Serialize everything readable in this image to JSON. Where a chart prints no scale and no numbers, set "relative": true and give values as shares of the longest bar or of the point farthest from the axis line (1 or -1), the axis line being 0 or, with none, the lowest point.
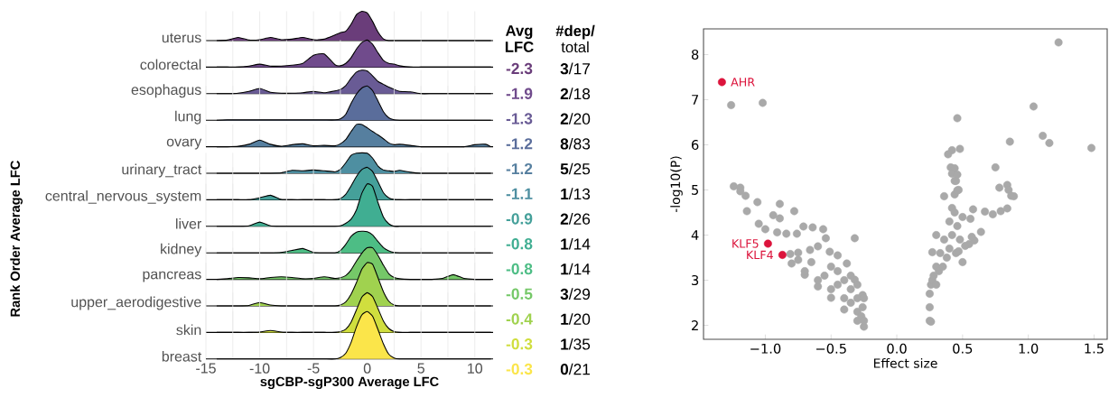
{
  "chart_data": [
    {
      "type": "area",
      "relative": true,
      "grid": "x",
      "tick_labels": false,
      "xlim": [
        -15,
        11.7
      ],
      "xticks": [
        -15,
        {
          "value": -12.5,
          "label": null
        },
        -10,
        {
          "value": -7.5,
          "label": null
        },
        -5,
        {
          "value": -2.5,
          "label": null
        },
        0,
        {
          "value": 2.5,
          "label": null
        },
        5,
        {
          "value": 7.5,
          "label": null
        },
        10
      ],
      "x": [
        -14,
        -13,
        -12,
        -11,
        -10,
        -9,
        -8,
        -7,
        -6,
        -5,
        -4,
        -3,
        -2.5,
        -2,
        -1.5,
        -1,
        -0.5,
        0,
        0.5,
        1,
        1.5,
        2,
        2.5,
        3,
        4,
        5,
        6,
        7,
        8,
        9,
        10,
        11,
        11.5
      ],
      "series": [
        {
          "name": "uterus",
          "color": "#6a3d7a",
          "values": [
            0,
            0.02,
            0.11,
            0.02,
            0.03,
            0.11,
            0.03,
            0.05,
            0.11,
            0.03,
            0.05,
            0.19,
            0.27,
            0.32,
            0.56,
            0.89,
            1,
            0.94,
            0.65,
            0.29,
            0.06,
            0,
            0,
            0,
            0,
            0,
            0,
            0,
            0,
            0,
            0,
            0,
            0
          ]
        }
      ]
    },
    {
      "type": "area",
      "relative": true,
      "grid": "x",
      "tick_labels": false,
      "xlim": [
        -15,
        11.7
      ],
      "xticks": [
        -15,
        {
          "value": -12.5,
          "label": null
        },
        -10,
        {
          "value": -7.5,
          "label": null
        },
        -5,
        {
          "value": -2.5,
          "label": null
        },
        0,
        {
          "value": 2.5,
          "label": null
        },
        5,
        {
          "value": 7.5,
          "label": null
        },
        10
      ],
      "x": [
        -14,
        -13,
        -12,
        -11,
        -10,
        -9,
        -8,
        -7,
        -6,
        -5,
        -4,
        -3,
        -2.5,
        -2,
        -1.5,
        -1,
        -0.5,
        0,
        0.5,
        1,
        1.5,
        2,
        2.5,
        3,
        4,
        5,
        6,
        7,
        8,
        9,
        10,
        11,
        11.5
      ],
      "series": [
        {
          "name": "colorectal",
          "color": "#704b8c",
          "values": [
            0,
            0,
            0,
            0.04,
            0.11,
            0.04,
            0.04,
            0.07,
            0.14,
            0.44,
            0.49,
            0.09,
            0.05,
            0.14,
            0.35,
            0.67,
            0.91,
            1,
            0.84,
            0.53,
            0.25,
            0.14,
            0.11,
            0.05,
            0,
            0,
            0,
            0,
            0,
            0,
            0,
            0,
            0
          ]
        }
      ]
    },
    {
      "type": "area",
      "relative": true,
      "grid": "x",
      "tick_labels": false,
      "xlim": [
        -15,
        11.7
      ],
      "xticks": [
        -15,
        {
          "value": -12.5,
          "label": null
        },
        -10,
        {
          "value": -7.5,
          "label": null
        },
        -5,
        {
          "value": -2.5,
          "label": null
        },
        0,
        {
          "value": 2.5,
          "label": null
        },
        5,
        {
          "value": 7.5,
          "label": null
        },
        10
      ],
      "x": [
        -14,
        -13,
        -12,
        -11,
        -10,
        -9,
        -8,
        -7,
        -6,
        -5,
        -4,
        -3,
        -2.5,
        -2,
        -1.5,
        -1,
        -0.5,
        0,
        0.5,
        1,
        1.5,
        2,
        2.5,
        3,
        4,
        5,
        6,
        7,
        8,
        9,
        10,
        11,
        11.5
      ],
      "series": [
        {
          "name": "esophagus",
          "color": "#695b95",
          "values": [
            0,
            0,
            0.02,
            0.1,
            0.22,
            0.06,
            0.02,
            0.02,
            0.04,
            0.1,
            0.04,
            0.12,
            0.18,
            0.34,
            0.66,
            0.92,
            1,
            0.96,
            0.76,
            0.52,
            0.4,
            0.28,
            0.18,
            0.1,
            0.08,
            0,
            0,
            0,
            0,
            0,
            0,
            0,
            0
          ]
        }
      ]
    },
    {
      "type": "area",
      "relative": true,
      "grid": "x",
      "tick_labels": false,
      "xlim": [
        -15,
        11.7
      ],
      "xticks": [
        -15,
        {
          "value": -12.5,
          "label": null
        },
        -10,
        {
          "value": -7.5,
          "label": null
        },
        -5,
        {
          "value": -2.5,
          "label": null
        },
        0,
        {
          "value": 2.5,
          "label": null
        },
        5,
        {
          "value": 7.5,
          "label": null
        },
        10
      ],
      "x": [
        -14,
        -13,
        -12,
        -11,
        -10,
        -9,
        -8,
        -7,
        -6,
        -5,
        -4,
        -3,
        -2.5,
        -2,
        -1.5,
        -1,
        -0.5,
        0,
        0.5,
        1,
        1.5,
        2,
        2.5,
        3,
        4,
        5,
        6,
        7,
        8,
        9,
        10,
        11,
        11.5
      ],
      "series": [
        {
          "name": "lung",
          "color": "#5a6d9b",
          "values": [
            0,
            0.01,
            0.01,
            0.01,
            0.01,
            0.01,
            0.01,
            0.01,
            0.01,
            0.01,
            0.01,
            0.01,
            0.04,
            0.17,
            0.49,
            0.76,
            0.94,
            1,
            0.86,
            0.56,
            0.25,
            0.07,
            0.01,
            0,
            0,
            0,
            0,
            0,
            0,
            0,
            0,
            0,
            0
          ]
        }
      ]
    },
    {
      "type": "area",
      "relative": true,
      "grid": "x",
      "tick_labels": false,
      "xlim": [
        -15,
        11.7
      ],
      "xticks": [
        -15,
        {
          "value": -12.5,
          "label": null
        },
        -10,
        {
          "value": -7.5,
          "label": null
        },
        -5,
        {
          "value": -2.5,
          "label": null
        },
        0,
        {
          "value": 2.5,
          "label": null
        },
        5,
        {
          "value": 7.5,
          "label": null
        },
        10
      ],
      "x": [
        -14,
        -13,
        -12,
        -11,
        -10,
        -9,
        -8,
        -7,
        -6,
        -5,
        -4,
        -3,
        -2.5,
        -2,
        -1.5,
        -1,
        -0.5,
        0,
        0.5,
        1,
        1.5,
        2,
        2.5,
        3,
        4,
        5,
        6,
        7,
        8,
        9,
        10,
        11,
        11.5
      ],
      "series": [
        {
          "name": "ovary",
          "color": "#567f9f",
          "values": [
            0,
            0,
            0.02,
            0.11,
            0.3,
            0.11,
            0.02,
            0.09,
            0.13,
            0.04,
            0.06,
            0.04,
            0.13,
            0.32,
            0.68,
            1,
            1,
            0.85,
            0.68,
            0.53,
            0.36,
            0.17,
            0.09,
            0.11,
            0.06,
            0,
            0,
            0,
            0,
            0,
            0.09,
            0.11,
            0
          ]
        }
      ]
    },
    {
      "type": "area",
      "relative": true,
      "grid": "x",
      "tick_labels": false,
      "xlim": [
        -15,
        11.7
      ],
      "xticks": [
        -15,
        {
          "value": -12.5,
          "label": null
        },
        -10,
        {
          "value": -7.5,
          "label": null
        },
        -5,
        {
          "value": -2.5,
          "label": null
        },
        0,
        {
          "value": 2.5,
          "label": null
        },
        5,
        {
          "value": 7.5,
          "label": null
        },
        10
      ],
      "x": [
        -14,
        -13,
        -12,
        -11,
        -10,
        -9,
        -8,
        -7,
        -6,
        -5,
        -4,
        -3,
        -2.5,
        -2,
        -1.5,
        -1,
        -0.5,
        0,
        0.5,
        1,
        1.5,
        2,
        2.5,
        3,
        4,
        5,
        6,
        7,
        8,
        9,
        10,
        11,
        11.5
      ],
      "series": [
        {
          "name": "urinary_tract",
          "color": "#4e8fa1",
          "values": [
            0,
            0,
            0,
            0,
            0,
            0,
            0.02,
            0.14,
            0.12,
            0.16,
            0.12,
            0.07,
            0.19,
            0.51,
            0.88,
            0.98,
            1,
            0.98,
            0.74,
            0.35,
            0.16,
            0.12,
            0.09,
            0.14,
            0.05,
            0,
            0,
            0,
            0,
            0,
            0,
            0,
            0
          ]
        }
      ]
    },
    {
      "type": "area",
      "relative": true,
      "grid": "x",
      "tick_labels": false,
      "ylabel": "Rank Order Average LFC",
      "xlim": [
        -15,
        11.7
      ],
      "xticks": [
        -15,
        {
          "value": -12.5,
          "label": null
        },
        -10,
        {
          "value": -7.5,
          "label": null
        },
        -5,
        {
          "value": -2.5,
          "label": null
        },
        0,
        {
          "value": 2.5,
          "label": null
        },
        5,
        {
          "value": 7.5,
          "label": null
        },
        10
      ],
      "x": [
        -14,
        -13,
        -12,
        -11,
        -10,
        -9,
        -8,
        -7,
        -6,
        -5,
        -4,
        -3,
        -2.5,
        -2,
        -1.5,
        -1,
        -0.5,
        0,
        0.5,
        1,
        1.5,
        2,
        2.5,
        3,
        4,
        5,
        6,
        7,
        8,
        9,
        10,
        11,
        11.5
      ],
      "series": [
        {
          "name": "central_nervous_system",
          "color": "#45a09a",
          "values": [
            0,
            0,
            0,
            0,
            0.06,
            0.14,
            0.01,
            0,
            0,
            0,
            0,
            0,
            0.04,
            0.17,
            0.43,
            0.72,
            0.93,
            1,
            0.87,
            0.55,
            0.22,
            0.06,
            0.01,
            0,
            0,
            0,
            0,
            0,
            0,
            0,
            0,
            0,
            0
          ]
        }
      ]
    },
    {
      "type": "area",
      "relative": true,
      "grid": "x",
      "tick_labels": false,
      "xlim": [
        -15,
        11.7
      ],
      "xticks": [
        -15,
        {
          "value": -12.5,
          "label": null
        },
        -10,
        {
          "value": -7.5,
          "label": null
        },
        -5,
        {
          "value": -2.5,
          "label": null
        },
        0,
        {
          "value": 2.5,
          "label": null
        },
        5,
        {
          "value": 7.5,
          "label": null
        },
        10
      ],
      "x": [
        -14,
        -13,
        -12,
        -11,
        -10,
        -9,
        -8,
        -7,
        -6,
        -5,
        -4,
        -3,
        -2.5,
        -2,
        -1.5,
        -1,
        -0.5,
        0,
        0.5,
        1,
        1.5,
        2,
        2.5,
        3,
        4,
        5,
        6,
        7,
        8,
        9,
        10,
        11,
        11.5
      ],
      "series": [
        {
          "name": "liver",
          "color": "#40ae92",
          "values": [
            0,
            0,
            0,
            0.01,
            0.1,
            0.01,
            0,
            0,
            0,
            0,
            0,
            0,
            0.01,
            0.07,
            0.17,
            0.39,
            0.78,
            1,
            0.94,
            0.56,
            0.22,
            0.06,
            0,
            0,
            0,
            0,
            0,
            0,
            0,
            0,
            0,
            0,
            0
          ]
        }
      ]
    },
    {
      "type": "area",
      "relative": true,
      "grid": "x",
      "tick_labels": false,
      "xlim": [
        -15,
        11.7
      ],
      "xticks": [
        -15,
        {
          "value": -12.5,
          "label": null
        },
        -10,
        {
          "value": -7.5,
          "label": null
        },
        -5,
        {
          "value": -2.5,
          "label": null
        },
        0,
        {
          "value": 2.5,
          "label": null
        },
        5,
        {
          "value": 7.5,
          "label": null
        },
        10
      ],
      "x": [
        -14,
        -13,
        -12,
        -11,
        -10,
        -9,
        -8,
        -7,
        -6,
        -5,
        -4,
        -3,
        -2.5,
        -2,
        -1.5,
        -1,
        -0.5,
        0,
        0.5,
        1,
        1.5,
        2,
        2.5,
        3,
        4,
        5,
        6,
        7,
        8,
        9,
        10,
        11,
        11.5
      ],
      "series": [
        {
          "name": "kidney",
          "color": "#4dbd85",
          "values": [
            0,
            0,
            0,
            0,
            0,
            0,
            0.02,
            0.11,
            0.2,
            0.02,
            0,
            0,
            0.11,
            0.39,
            0.76,
            0.96,
            1,
            0.98,
            0.83,
            0.52,
            0.24,
            0.09,
            0.02,
            0,
            0,
            0,
            0,
            0,
            0,
            0,
            0,
            0,
            0
          ]
        }
      ]
    },
    {
      "type": "area",
      "relative": true,
      "grid": "x",
      "tick_labels": false,
      "xlim": [
        -15,
        11.7
      ],
      "xticks": [
        -15,
        {
          "value": -12.5,
          "label": null
        },
        -10,
        {
          "value": -7.5,
          "label": null
        },
        -5,
        {
          "value": -2.5,
          "label": null
        },
        0,
        {
          "value": 2.5,
          "label": null
        },
        5,
        {
          "value": 7.5,
          "label": null
        },
        10
      ],
      "x": [
        -14,
        -13,
        -12,
        -11,
        -10,
        -9,
        -8,
        -7,
        -6,
        -5,
        -4,
        -3,
        -2.5,
        -2,
        -1.5,
        -1,
        -0.5,
        0,
        0.5,
        1,
        1.5,
        2,
        2.5,
        3,
        4,
        5,
        6,
        7,
        8,
        9,
        10,
        11,
        11.5
      ],
      "series": [
        {
          "name": "pancreas",
          "color": "#75c868",
          "values": [
            0,
            0.02,
            0.06,
            0.05,
            0.02,
            0.06,
            0.08,
            0.06,
            0.02,
            0.03,
            0.08,
            0.03,
            0.05,
            0.12,
            0.3,
            0.58,
            0.83,
            1,
            1,
            0.76,
            0.45,
            0.18,
            0.06,
            0.02,
            0,
            0,
            0,
            0.03,
            0.15,
            0.03,
            0,
            0,
            0
          ]
        }
      ]
    },
    {
      "type": "area",
      "relative": true,
      "grid": "x",
      "tick_labels": false,
      "xlim": [
        -15,
        11.7
      ],
      "xticks": [
        -15,
        {
          "value": -12.5,
          "label": null
        },
        -10,
        {
          "value": -7.5,
          "label": null
        },
        -5,
        {
          "value": -2.5,
          "label": null
        },
        0,
        {
          "value": 2.5,
          "label": null
        },
        5,
        {
          "value": 7.5,
          "label": null
        },
        10
      ],
      "x": [
        -14,
        -13,
        -12,
        -11,
        -10,
        -9,
        -8,
        -7,
        -6,
        -5,
        -4,
        -3,
        -2.5,
        -2,
        -1.5,
        -1,
        -0.5,
        0,
        0.5,
        1,
        1.5,
        2,
        2.5,
        3,
        4,
        5,
        6,
        7,
        8,
        9,
        10,
        11,
        11.5
      ],
      "series": [
        {
          "name": "upper_aerodigestive",
          "color": "#a0d24f",
          "values": [
            0,
            0,
            0,
            0.01,
            0.08,
            0.02,
            0,
            0,
            0,
            0,
            0,
            0,
            0.02,
            0.09,
            0.27,
            0.54,
            0.85,
            1,
            0.96,
            0.65,
            0.33,
            0.11,
            0.02,
            0,
            0,
            0,
            0,
            0,
            0,
            0,
            0,
            0,
            0
          ]
        }
      ]
    },
    {
      "type": "area",
      "relative": true,
      "grid": "x",
      "tick_labels": false,
      "xlim": [
        -15,
        11.7
      ],
      "xticks": [
        -15,
        {
          "value": -12.5,
          "label": null
        },
        -10,
        {
          "value": -7.5,
          "label": null
        },
        -5,
        {
          "value": -2.5,
          "label": null
        },
        0,
        {
          "value": 2.5,
          "label": null
        },
        5,
        {
          "value": 7.5,
          "label": null
        },
        10
      ],
      "x": [
        -14,
        -13,
        -12,
        -11,
        -10,
        -9,
        -8,
        -7,
        -6,
        -5,
        -4,
        -3,
        -2.5,
        -2,
        -1.5,
        -1,
        -0.5,
        0,
        0.5,
        1,
        1.5,
        2,
        2.5,
        3,
        4,
        5,
        6,
        7,
        8,
        9,
        10,
        11,
        11.5
      ],
      "series": [
        {
          "name": "skin",
          "color": "#d0de3e",
          "values": [
            0,
            0,
            0,
            0,
            0.01,
            0.05,
            0.01,
            0,
            0,
            0,
            0,
            0,
            0.02,
            0.08,
            0.26,
            0.57,
            0.89,
            1,
            0.9,
            0.6,
            0.29,
            0.1,
            0.02,
            0,
            0,
            0,
            0,
            0,
            0,
            0,
            0,
            0,
            0
          ]
        }
      ]
    },
    {
      "type": "area",
      "relative": true,
      "grid": "x",
      "tick_labels": "x",
      "xlabel": "sgCBP-sgP300 Average LFC",
      "xlim": [
        -15,
        11.7
      ],
      "xticks": [
        -15,
        {
          "value": -12.5,
          "label": null
        },
        -10,
        {
          "value": -7.5,
          "label": null
        },
        -5,
        {
          "value": -2.5,
          "label": null
        },
        0,
        {
          "value": 2.5,
          "label": null
        },
        5,
        {
          "value": 7.5,
          "label": null
        },
        10
      ],
      "x": [
        -14,
        -13,
        -12,
        -11,
        -10,
        -9,
        -8,
        -7,
        -6,
        -5,
        -4,
        -3,
        -2.5,
        -2,
        -1.5,
        -1,
        -0.5,
        0,
        0.5,
        1,
        1.5,
        2,
        2.5,
        3,
        4,
        5,
        6,
        7,
        8,
        9,
        10,
        11,
        11.5
      ],
      "series": [
        {
          "name": "breast",
          "color": "#fbe54a",
          "values": [
            0,
            0,
            0,
            0,
            0,
            0,
            0,
            0,
            0,
            0,
            0,
            0,
            0.03,
            0.12,
            0.35,
            0.68,
            0.93,
            1,
            0.9,
            0.62,
            0.32,
            0.1,
            0.02,
            0,
            0,
            0,
            0,
            0,
            0,
            0,
            0,
            0,
            0
          ]
        }
      ]
    },
    {
      "type": "other",
      "annotations": [
        "Avg LFC",
        "-2.3",
        "-1.9",
        "-1.3",
        "-1.2",
        "-1.2",
        "-1.1",
        "-0.9",
        "-0.8",
        "-0.8",
        "-0.5",
        "-0.4",
        "-0.3",
        "-0.3",
        "**#dep/** total",
        "**3**/17",
        "**2**/18",
        "**2**/20",
        "**8**/83",
        "**5**/25",
        "**1**/13",
        "**2**/26",
        "**1**/14",
        "**1**/14",
        "**3**/29",
        "**1**/20",
        "**1**/35",
        "**0**/21"
      ]
    },
    {
      "type": "scatter",
      "marker": "circle",
      "xlabel": "Effect size",
      "ylabel": "-log10(P)",
      "xlim": [
        -1.47,
        1.6
      ],
      "ylim": [
        1.69,
        8.57
      ],
      "xticks": [
        {
          "value": -1,
          "label": "−1.0"
        },
        {
          "value": -0.5,
          "label": "−0.5"
        },
        {
          "value": 0,
          "label": "0.0"
        },
        {
          "value": 0.5,
          "label": "0.5"
        },
        {
          "value": 1,
          "label": "1.0"
        },
        {
          "value": 1.5,
          "label": "1.5"
        }
      ],
      "yticks": [
        2,
        3,
        4,
        5,
        6,
        7,
        8
      ],
      "series": [
        {
          "color": "#a9a9a9",
          "x": [
            -1.26,
            -1.02,
            1.23,
            1.04,
            1.11,
            1.16,
            1.48,
            0.46,
            0.86,
            0.75,
            0.48,
            0.42,
            0.39,
            0.41,
            0.44,
            0.42,
            0.46,
            0.47,
            0.44,
            0.78,
            0.84,
            0.85,
            0.87,
            -1.24,
            -1.19,
            -1.19,
            -1.15,
            -1.06,
            -1.14,
            -1.05,
            -0.89,
            -0.94,
            -0.89,
            -0.78,
            -1.0,
            -0.91,
            -0.84,
            -0.76,
            -0.71,
            -0.64,
            -0.56,
            -0.54,
            -0.32,
            -0.6,
            -0.66,
            -0.51,
            -0.45,
            -0.75,
            -0.81,
            -0.38,
            -0.32,
            -0.26,
            -0.8,
            -0.7,
            -0.6,
            -0.5,
            -0.4,
            -0.3,
            -0.25,
            -0.7,
            -0.6,
            -0.55,
            -0.5,
            -0.45,
            -0.45,
            -0.4,
            -0.4,
            -0.35,
            -0.35,
            -0.35,
            -0.3,
            -0.3,
            -0.3,
            -0.27,
            -0.26,
            -0.25,
            -0.25,
            -0.5,
            -0.65,
            -0.75,
            0.25,
            0.25,
            0.25,
            0.26,
            0.27,
            0.28,
            0.3,
            0.3,
            0.32,
            0.33,
            0.35,
            0.36,
            0.38,
            0.4,
            0.4,
            0.42,
            0.42,
            0.44,
            0.44,
            0.45,
            0.45,
            0.46,
            0.48,
            0.5,
            0.5,
            0.55,
            0.56,
            0.58,
            0.67,
            0.73,
            0.79,
            0.84,
            0.89,
            0.64,
            0.59,
            0.57,
            0.52,
            0.47,
            0.3,
            0.27,
            0.46,
            0.36,
            0.26
          ],
          "values": [
            6.88,
            6.93,
            8.27,
            6.85,
            6.2,
            6.04,
            5.93,
            6.59,
            6.07,
            5.5,
            5.91,
            5.88,
            5.79,
            5.5,
            5.48,
            5.36,
            5.34,
            5.0,
            5.2,
            5.05,
            5.11,
            5.0,
            4.87,
            5.08,
            5.05,
            4.97,
            4.87,
            4.73,
            4.53,
            4.25,
            4.69,
            4.44,
            4.37,
            4.53,
            4.13,
            4.06,
            4.03,
            4.03,
            4.19,
            4.17,
            4.13,
            3.93,
            3.93,
            3.75,
            3.67,
            3.63,
            3.55,
            3.61,
            3.58,
            3.37,
            3.01,
            2.67,
            3.37,
            3.12,
            2.86,
            2.61,
            2.35,
            2.1,
            1.97,
            3.2,
            3.0,
            3.1,
            2.8,
            2.9,
            3.2,
            2.6,
            3.0,
            2.5,
            2.8,
            3.1,
            2.3,
            2.6,
            2.9,
            2.2,
            2.4,
            2.1,
            2.6,
            3.3,
            3.4,
            3.45,
            2.1,
            2.4,
            2.7,
            2.9,
            3.0,
            3.1,
            3.3,
            2.9,
            3.2,
            3.6,
            3.3,
            3.9,
            3.5,
            4.3,
            3.7,
            4.6,
            4.0,
            4.9,
            4.5,
            5.2,
            3.6,
            4.2,
            3.9,
            3.4,
            4.4,
            3.8,
            4.36,
            4.57,
            4.52,
            4.46,
            4.53,
            4.59,
            4.86,
            4.07,
            3.88,
            3.96,
            3.76,
            3.64,
            4.0,
            3.62,
            4.99,
            4.86,
            2.08
          ]
        },
        {
          "color": "#dc143c",
          "x": [
            -1.33,
            -0.98,
            -0.87
          ],
          "values": [
            7.39,
            3.81,
            3.56
          ]
        }
      ],
      "annotations": [
        {
          "text": "AHR",
          "x": -1.33,
          "y": 7.39
        },
        {
          "text": "KLF5",
          "x": -0.98,
          "y": 3.81
        },
        {
          "text": "KLF4",
          "x": -0.87,
          "y": 3.56
        }
      ]
    }
  ]
}
